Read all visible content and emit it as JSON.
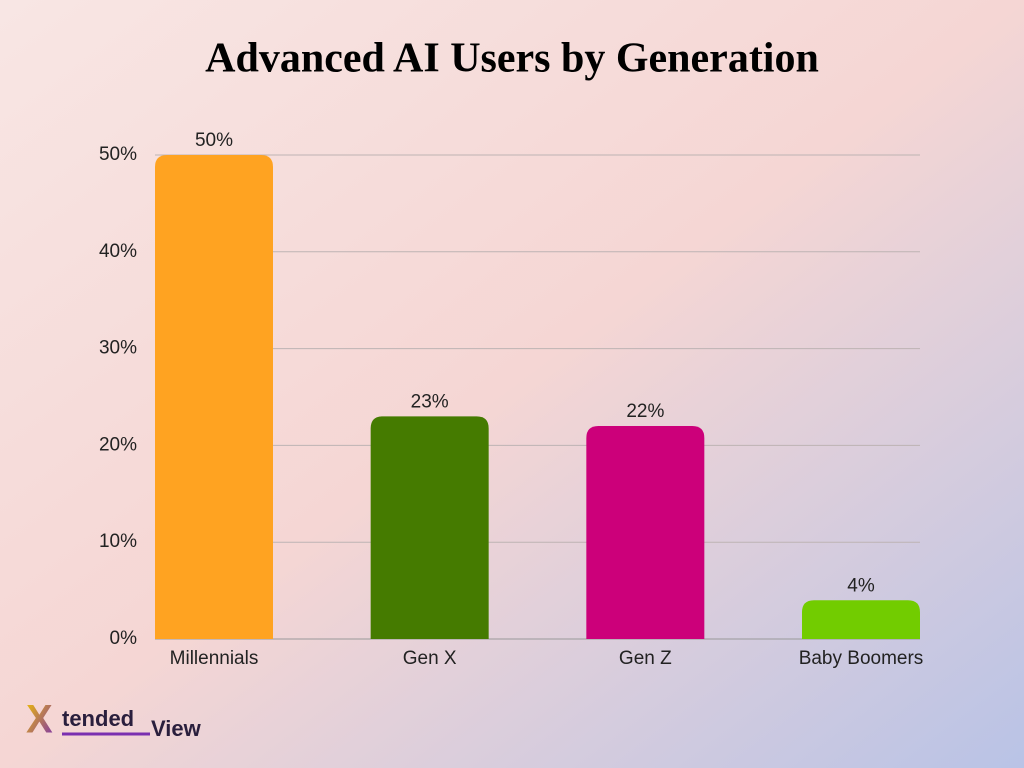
{
  "chart_data": {
    "type": "bar",
    "title": "Advanced AI Users by Generation",
    "categories": [
      "Millennials",
      "Gen X",
      "Gen Z",
      "Baby Boomers"
    ],
    "values": [
      50,
      23,
      22,
      4
    ],
    "value_labels": [
      "50%",
      "23%",
      "22%",
      "4%"
    ],
    "colors": [
      "#ffa321",
      "#457b00",
      "#cc007a",
      "#72cc00"
    ],
    "ylim": [
      0,
      50
    ],
    "yticks": [
      {
        "value": 0,
        "label": "0%"
      },
      {
        "value": 10,
        "label": "10%"
      },
      {
        "value": 20,
        "label": "20%"
      },
      {
        "value": 30,
        "label": "30%"
      },
      {
        "value": 40,
        "label": "40%"
      },
      {
        "value": 50,
        "label": "50%"
      }
    ],
    "grid": true
  },
  "logo": {
    "mark": "X",
    "text": "tended",
    "text2": "View"
  }
}
